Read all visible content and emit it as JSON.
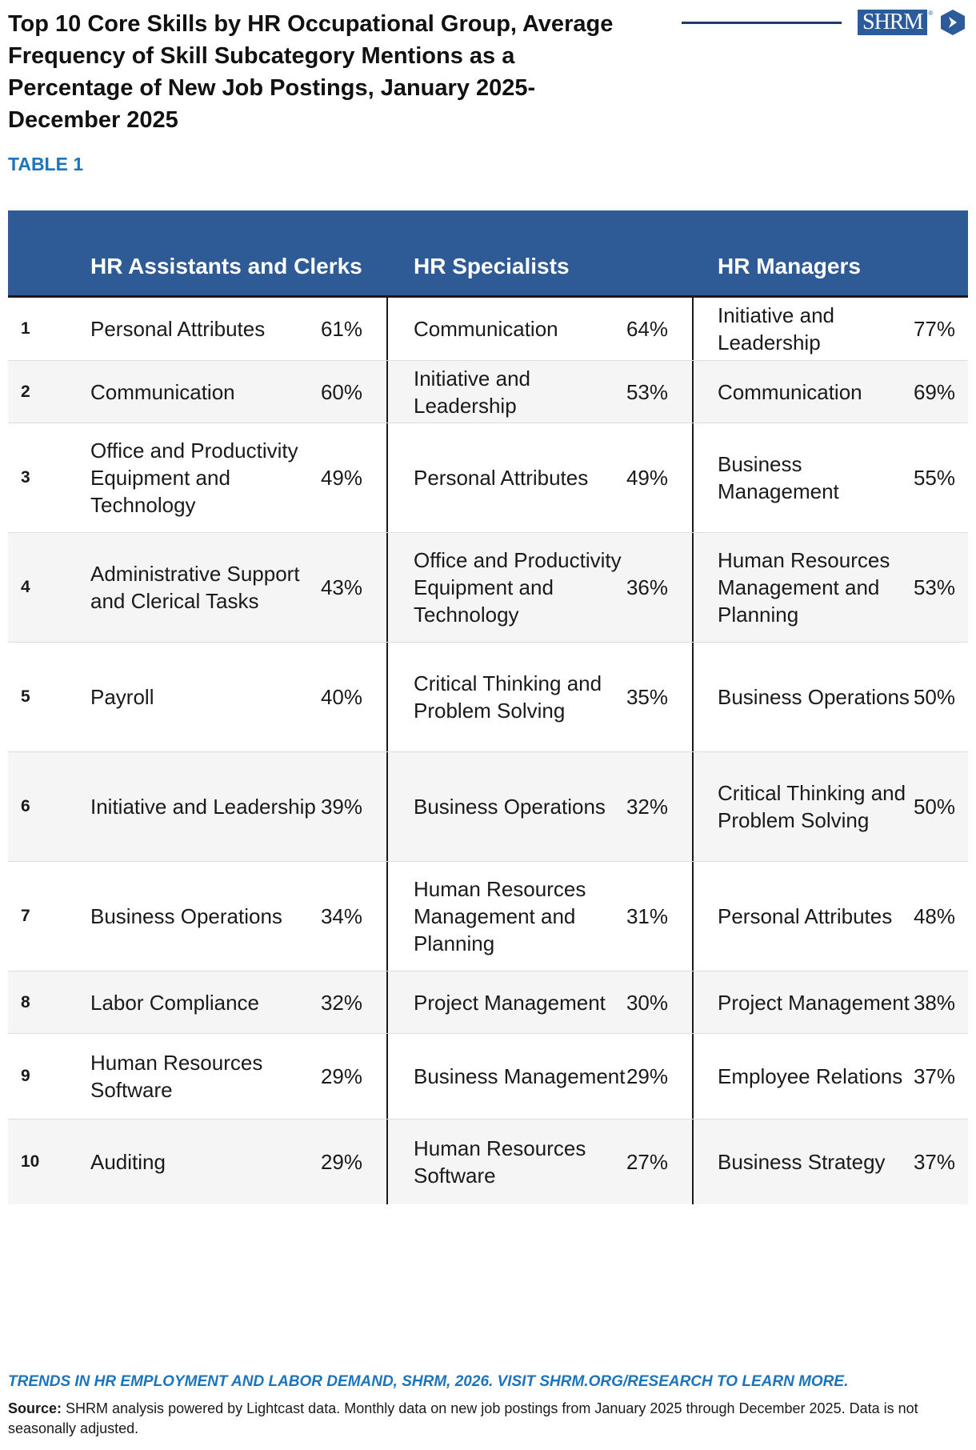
{
  "title": "Top 10 Core Skills by HR Occupational Group, Average\nFrequency of Skill Subcategory Mentions as a\nPercentage of New Job Postings, January 2025-\nDecember 2025",
  "logo": {
    "text": "SHRM",
    "reg": "®"
  },
  "table_label": "TABLE 1",
  "columns": [
    "HR Assistants and Clerks",
    "HR Specialists",
    "HR Managers"
  ],
  "rows": [
    {
      "rank": "1",
      "c1": {
        "skill": "Personal Attributes",
        "pct": "61%"
      },
      "c2": {
        "skill": "Communication",
        "pct": "64%"
      },
      "c3": {
        "skill": "Initiative and Leadership",
        "pct": "77%"
      }
    },
    {
      "rank": "2",
      "c1": {
        "skill": "Communication",
        "pct": "60%"
      },
      "c2": {
        "skill": "Initiative and Leadership",
        "pct": "53%"
      },
      "c3": {
        "skill": "Communication",
        "pct": "69%"
      }
    },
    {
      "rank": "3",
      "c1": {
        "skill": "Office and Productivity Equipment and Technology",
        "pct": "49%"
      },
      "c2": {
        "skill": "Personal Attributes",
        "pct": "49%"
      },
      "c3": {
        "skill": "Business Management",
        "pct": "55%"
      }
    },
    {
      "rank": "4",
      "c1": {
        "skill": "Administrative Support and Clerical Tasks",
        "pct": "43%"
      },
      "c2": {
        "skill": "Office and Productivity Equipment and Technology",
        "pct": "36%"
      },
      "c3": {
        "skill": "Human Resources Management and Planning",
        "pct": "53%"
      }
    },
    {
      "rank": "5",
      "c1": {
        "skill": "Payroll",
        "pct": "40%"
      },
      "c2": {
        "skill": "Critical Thinking and Problem Solving",
        "pct": "35%"
      },
      "c3": {
        "skill": "Business Operations",
        "pct": "50%"
      }
    },
    {
      "rank": "6",
      "c1": {
        "skill": "Initiative and Leadership",
        "pct": "39%"
      },
      "c2": {
        "skill": "Business Operations",
        "pct": "32%"
      },
      "c3": {
        "skill": "Critical Thinking and Problem Solving",
        "pct": "50%"
      }
    },
    {
      "rank": "7",
      "c1": {
        "skill": "Business Operations",
        "pct": "34%"
      },
      "c2": {
        "skill": "Human Resources Management and Planning",
        "pct": "31%"
      },
      "c3": {
        "skill": "Personal Attributes",
        "pct": "48%"
      }
    },
    {
      "rank": "8",
      "c1": {
        "skill": "Labor Compliance",
        "pct": "32%"
      },
      "c2": {
        "skill": "Project Management",
        "pct": "30%"
      },
      "c3": {
        "skill": "Project Management",
        "pct": "38%"
      }
    },
    {
      "rank": "9",
      "c1": {
        "skill": "Human Resources Software",
        "pct": "29%"
      },
      "c2": {
        "skill": "Business Management",
        "pct": "29%"
      },
      "c3": {
        "skill": "Employee Relations",
        "pct": "37%"
      }
    },
    {
      "rank": "10",
      "c1": {
        "skill": "Auditing",
        "pct": "29%"
      },
      "c2": {
        "skill": "Human Resources Software",
        "pct": "27%"
      },
      "c3": {
        "skill": "Business Strategy",
        "pct": "37%"
      }
    }
  ],
  "footer_link": "TRENDS IN HR EMPLOYMENT AND LABOR DEMAND, SHRM, 2026. VISIT SHRM.ORG/RESEARCH TO LEARN MORE.",
  "source": {
    "label": "Source:",
    "text": " SHRM analysis powered by Lightcast data. Monthly data on new job postings from January 2025 through December 2025. Data is not seasonally adjusted."
  }
}
